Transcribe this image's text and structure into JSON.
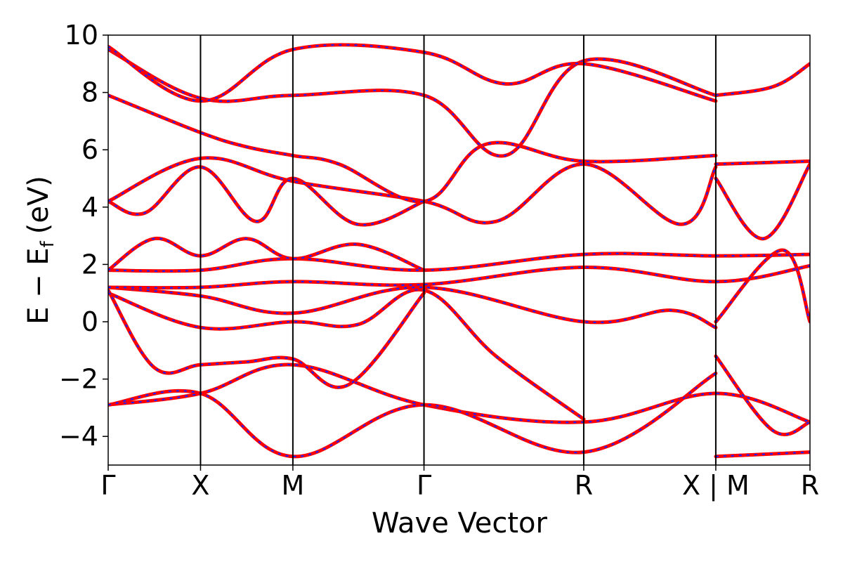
{
  "chart_data": {
    "type": "line",
    "xlabel": "Wave Vector",
    "ylabel": "E − E",
    "ylabel_subscript": "f",
    "ylabel_unit": "(eV)",
    "ylim": [
      -5,
      10
    ],
    "yticks": [
      -4,
      -2,
      0,
      2,
      4,
      6,
      8,
      10
    ],
    "ytick_labels": [
      "−4",
      "−2",
      "0",
      "2",
      "4",
      "6",
      "8",
      "10"
    ],
    "xlim": [
      0,
      7.6
    ],
    "kpoints": [
      {
        "label": "Γ",
        "x": 0.0
      },
      {
        "label": "X",
        "x": 1.0
      },
      {
        "label": "M",
        "x": 2.0
      },
      {
        "label": "Γ",
        "x": 3.42
      },
      {
        "label": "R",
        "x": 5.15
      },
      {
        "label": "X | M",
        "x": 6.58
      },
      {
        "label": "R",
        "x": 7.6
      }
    ],
    "grid": false,
    "colors": {
      "band_primary": "#ff0000",
      "band_secondary": "#1f1fff",
      "axis": "#000000"
    },
    "series": [
      {
        "x": [
          0,
          1,
          2,
          3.42,
          5.15,
          6.58,
          7.6
        ],
        "y": [
          -2.9,
          -2.5,
          -1.5,
          -2.9,
          -3.5,
          -2.5,
          -3.5
        ]
      },
      {
        "x": [
          0,
          1,
          2,
          3.42,
          5.15,
          6.58
        ],
        "y": [
          -2.9,
          -2.5,
          -4.7,
          -2.9,
          -4.55,
          -1.8
        ]
      },
      {
        "x": [
          6.58,
          7.6
        ],
        "y": [
          -4.7,
          -4.55
        ]
      },
      {
        "x": [
          0,
          0.5,
          1,
          1.5,
          2,
          2.6,
          3.42
        ],
        "y": [
          1.1,
          -1.6,
          -1.5,
          -1.4,
          -1.3,
          -2.2,
          1.0
        ]
      },
      {
        "x": [
          0,
          1,
          2,
          2.7,
          3.42,
          4.2,
          5.15
        ],
        "y": [
          1.0,
          -0.2,
          0.0,
          -0.1,
          1.1,
          -1.2,
          -3.4
        ]
      },
      {
        "x": [
          0,
          1,
          2,
          3.42,
          5.15,
          6.1,
          6.58
        ],
        "y": [
          1.2,
          0.9,
          0.3,
          1.2,
          0.0,
          0.4,
          -0.2
        ]
      },
      {
        "x": [
          0,
          1,
          2,
          3.42,
          5.15,
          6.58,
          7.6
        ],
        "y": [
          1.2,
          1.2,
          1.4,
          1.3,
          1.9,
          1.4,
          1.95
        ]
      },
      {
        "x": [
          0,
          1,
          2,
          3.42,
          5.15,
          6.58,
          7.6
        ],
        "y": [
          1.8,
          1.8,
          2.2,
          1.8,
          2.35,
          2.3,
          2.35
        ]
      },
      {
        "x": [
          0,
          0.5,
          1,
          1.5,
          2,
          2.7,
          3.42
        ],
        "y": [
          1.8,
          2.9,
          2.3,
          2.9,
          2.2,
          2.7,
          1.8
        ]
      },
      {
        "x": [
          0,
          0.4,
          1,
          1.6,
          2,
          2.7,
          3.42
        ],
        "y": [
          4.2,
          3.8,
          5.4,
          3.5,
          5.0,
          3.4,
          4.2
        ]
      },
      {
        "x": [
          0,
          1,
          2,
          3.42,
          4.2,
          5.15,
          6.2,
          6.58
        ],
        "y": [
          4.2,
          5.7,
          4.9,
          4.2,
          3.5,
          5.5,
          3.4,
          5.4
        ]
      },
      {
        "x": [
          0,
          1,
          1.5,
          2,
          2.5,
          3.42,
          4.1,
          5.15,
          6.58
        ],
        "y": [
          7.9,
          6.6,
          6.1,
          5.8,
          5.5,
          4.2,
          6.2,
          5.6,
          5.8
        ]
      },
      {
        "x": [
          0,
          1,
          2,
          3.42,
          4.3,
          5.15,
          6.58
        ],
        "y": [
          9.5,
          7.8,
          7.9,
          7.9,
          5.8,
          9.1,
          7.9
        ]
      },
      {
        "x": [
          0,
          1,
          2,
          3.42,
          4.3,
          5.15,
          6.58
        ],
        "y": [
          9.6,
          7.7,
          9.5,
          9.4,
          8.3,
          9.0,
          7.7
        ]
      },
      {
        "x": [
          6.58,
          7.6
        ],
        "y": [
          5.5,
          5.6
        ]
      },
      {
        "x": [
          6.58,
          7.1,
          7.6
        ],
        "y": [
          5.0,
          2.9,
          5.5
        ]
      },
      {
        "x": [
          6.58,
          7.2,
          7.6
        ],
        "y": [
          7.9,
          8.2,
          9.0
        ]
      },
      {
        "x": [
          6.58,
          7.3,
          7.6
        ],
        "y": [
          0.0,
          2.5,
          0.0
        ]
      },
      {
        "x": [
          6.58,
          7.2,
          7.6
        ],
        "y": [
          -1.2,
          -3.8,
          -3.5
        ]
      }
    ]
  }
}
